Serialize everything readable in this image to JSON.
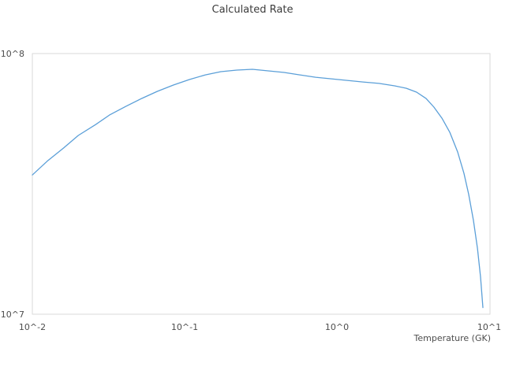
{
  "chart_data": {
    "type": "line",
    "title": "Calculated Rate",
    "xlabel": "Temperature (GK)",
    "ylabel": "",
    "x_scale": "log",
    "y_scale": "log",
    "xlim": [
      0.01,
      10
    ],
    "ylim": [
      10000000.0,
      100000000.0
    ],
    "x_ticks": [
      "10^-2",
      "10^-1",
      "10^0",
      "10^1"
    ],
    "y_ticks": [
      "10^7",
      "10^8"
    ],
    "grid": false,
    "legend_position": "none",
    "line_color": "#5b9fd8",
    "series": [
      {
        "name": "calculated-rate",
        "points": [
          [
            0.01,
            34200000.0
          ],
          [
            0.0125,
            38600000.0
          ],
          [
            0.016,
            43400000.0
          ],
          [
            0.02,
            48500000.0
          ],
          [
            0.026,
            53400000.0
          ],
          [
            0.032,
            58100000.0
          ],
          [
            0.041,
            62700000.0
          ],
          [
            0.052,
            67200000.0
          ],
          [
            0.066,
            71600000.0
          ],
          [
            0.084,
            75700000.0
          ],
          [
            0.107,
            79500000.0
          ],
          [
            0.136,
            82800000.0
          ],
          [
            0.172,
            85200000.0
          ],
          [
            0.219,
            86400000.0
          ],
          [
            0.277,
            87000000.0
          ],
          [
            0.352,
            85800000.0
          ],
          [
            0.447,
            84600000.0
          ],
          [
            0.567,
            82800000.0
          ],
          [
            0.719,
            81100000.0
          ],
          [
            0.913,
            80000000.0
          ],
          [
            1.16,
            78900000.0
          ],
          [
            1.47,
            77800000.0
          ],
          [
            1.87,
            76800000.0
          ],
          [
            2.37,
            75200000.0
          ],
          [
            2.83,
            73600000.0
          ],
          [
            3.3,
            71100000.0
          ],
          [
            3.81,
            67200000.0
          ],
          [
            4.29,
            62300000.0
          ],
          [
            4.84,
            56500000.0
          ],
          [
            5.45,
            49900000.0
          ],
          [
            6.14,
            41900000.0
          ],
          [
            6.75,
            34700000.0
          ],
          [
            7.25,
            28800000.0
          ],
          [
            7.79,
            22900000.0
          ],
          [
            8.27,
            17900000.0
          ],
          [
            8.67,
            13900000.0
          ],
          [
            8.98,
            10600000.0
          ]
        ]
      }
    ]
  },
  "colors": {
    "background": "#ffffff",
    "plot_border": "#d9d9d9",
    "title_text": "#3c3c3c",
    "tick_text": "#4d4d4d"
  }
}
